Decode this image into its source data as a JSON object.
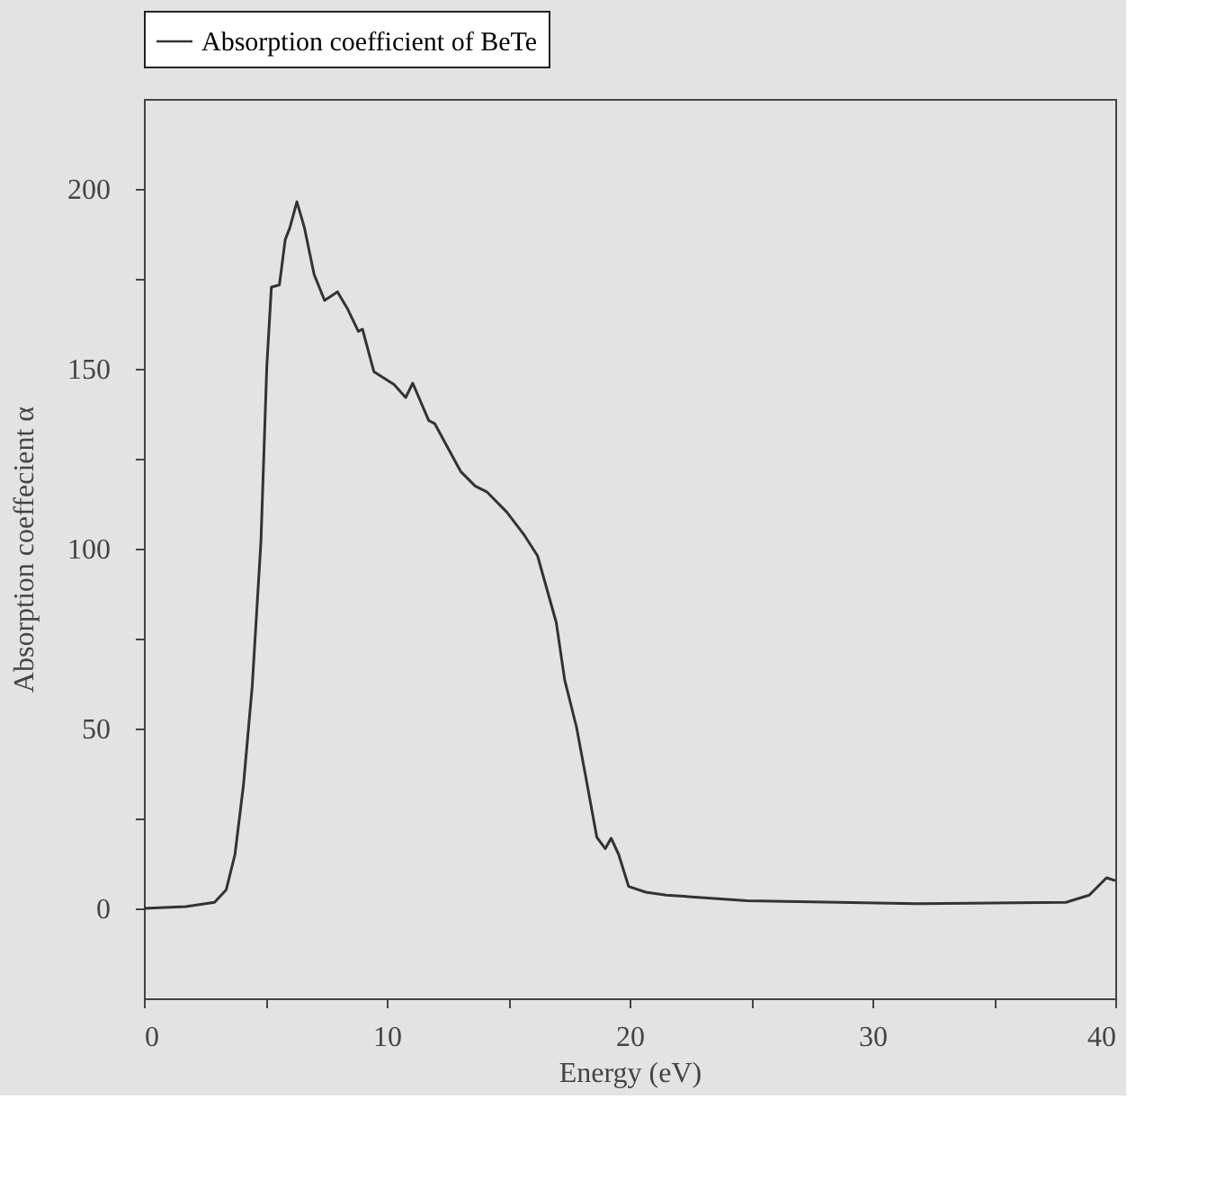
{
  "chart_data": {
    "type": "line",
    "xlabel": "Energy (eV)",
    "ylabel": "Absorption coeffecient  α",
    "xlim": [
      0,
      40
    ],
    "ylim": [
      -25,
      225
    ],
    "xticks": [
      0,
      {
        "value": 5,
        "label": null
      },
      10,
      {
        "value": 15,
        "label": null
      },
      20,
      {
        "value": 25,
        "label": null
      },
      30,
      {
        "value": 35,
        "label": null
      },
      40
    ],
    "yticks": [
      0,
      {
        "value": 25,
        "label": null
      },
      50,
      {
        "value": 75,
        "label": null
      },
      100,
      {
        "value": 125,
        "label": null
      },
      150,
      {
        "value": 175,
        "label": null
      },
      200
    ],
    "grid": false,
    "legend": "top",
    "marker": "none",
    "line_style": "solid",
    "series": [
      {
        "name": "Absorption coefficient of BeTe",
        "color": "#333333",
        "x": [
          0,
          1.72,
          2.91,
          3.39,
          3.75,
          4.1,
          4.46,
          4.82,
          5.06,
          5.25,
          5.58,
          5.82,
          6.01,
          6.3,
          6.61,
          7.01,
          7.44,
          7.97,
          8.39,
          8.83,
          9.0,
          9.47,
          10.3,
          10.78,
          11.07,
          11.73,
          11.97,
          13.05,
          13.64,
          14.12,
          14.95,
          15.67,
          16.21,
          16.98,
          17.33,
          17.81,
          18.17,
          18.65,
          19.0,
          19.24,
          19.55,
          19.96,
          20.67,
          21.51,
          24.85,
          32.0,
          37.97,
          38.93,
          39.64,
          40
        ],
        "values": [
          0,
          0.5,
          1.7,
          5.2,
          15,
          34.3,
          61.7,
          102,
          150.5,
          172.7,
          173.3,
          185.9,
          189.2,
          196.4,
          189.2,
          176.2,
          169,
          171.4,
          166.6,
          160.4,
          161,
          149.2,
          145.6,
          142,
          146,
          135.6,
          134.8,
          121.4,
          117.4,
          115.8,
          110.1,
          103.7,
          98,
          79.5,
          63.4,
          50.5,
          37.5,
          19.8,
          16.6,
          19.5,
          15,
          6.1,
          4.5,
          3.7,
          2.1,
          1.3,
          1.7,
          3.7,
          8.5,
          7.7
        ]
      }
    ]
  }
}
